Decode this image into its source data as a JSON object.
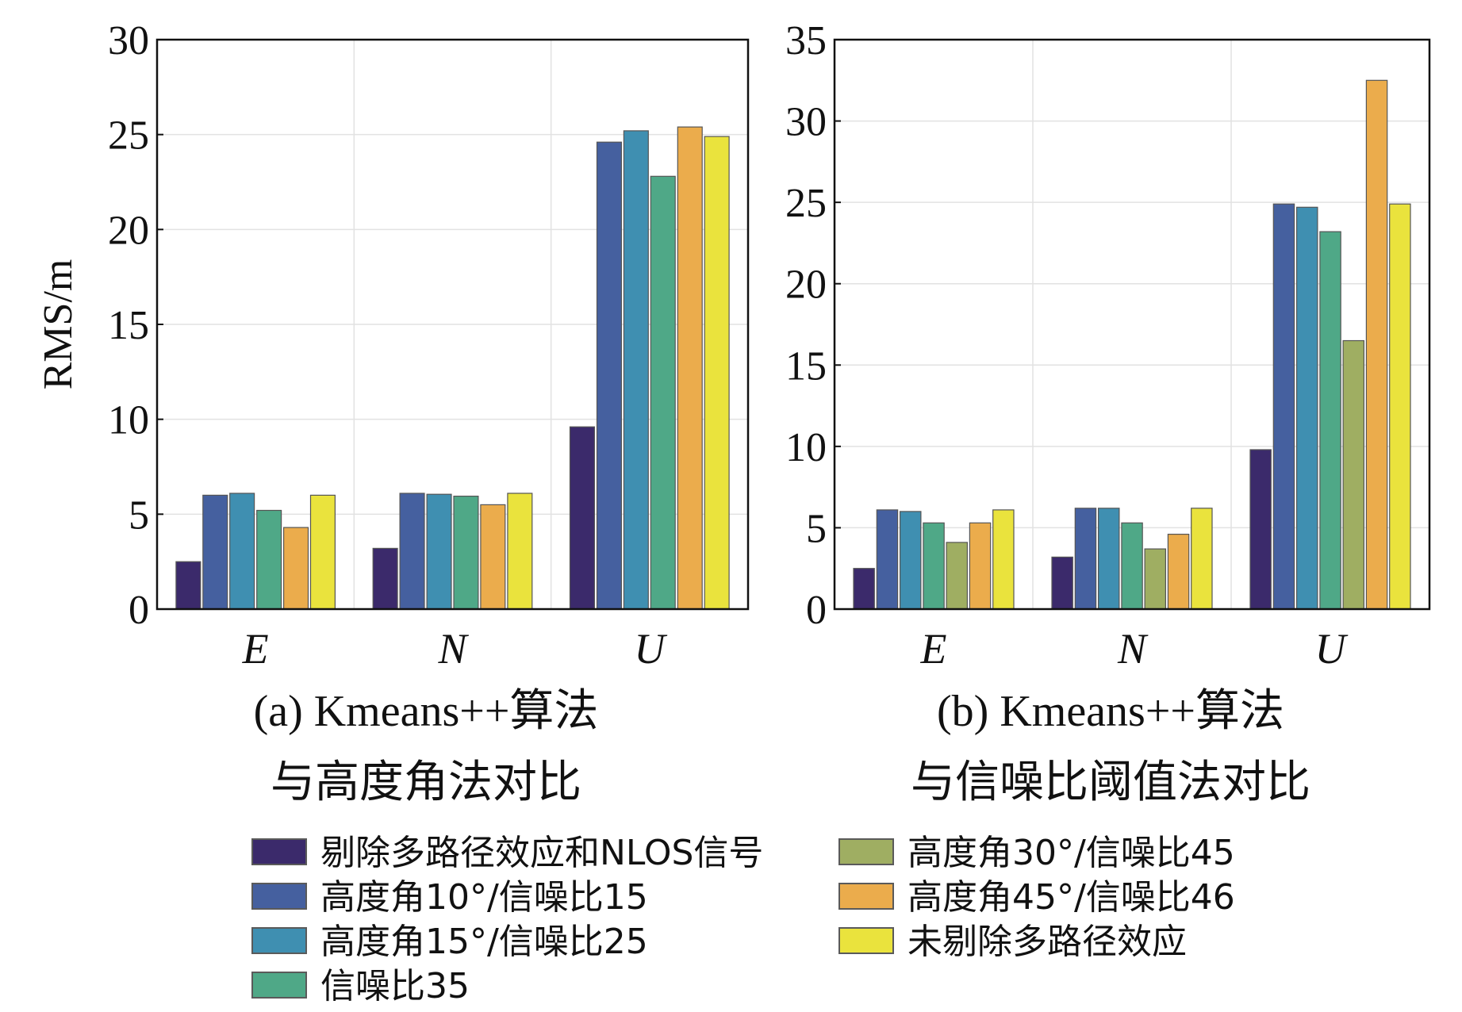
{
  "chart_data": [
    {
      "type": "bar",
      "panel": "a",
      "caption_line1": "(a) Kmeans++算法",
      "caption_line2": "与高度角法对比",
      "ylabel": "RMS/m",
      "xlabel": "",
      "categories": [
        "E",
        "N",
        "U"
      ],
      "ylim": [
        0,
        30
      ],
      "yticks": [
        0,
        5,
        10,
        15,
        20,
        25,
        30
      ],
      "grid": true,
      "series": [
        {
          "key": "s1",
          "values": [
            2.5,
            3.2,
            9.6
          ]
        },
        {
          "key": "s2",
          "values": [
            6.0,
            6.1,
            24.6
          ]
        },
        {
          "key": "s3",
          "values": [
            6.1,
            6.05,
            25.2
          ]
        },
        {
          "key": "s4",
          "values": [
            5.2,
            5.95,
            22.8
          ]
        },
        {
          "key": "s6",
          "values": [
            4.3,
            5.5,
            25.4
          ]
        },
        {
          "key": "s7",
          "values": [
            6.0,
            6.1,
            24.9
          ]
        }
      ]
    },
    {
      "type": "bar",
      "panel": "b",
      "caption_line1": "(b) Kmeans++算法",
      "caption_line2": "与信噪比阈值法对比",
      "ylabel": "",
      "xlabel": "",
      "categories": [
        "E",
        "N",
        "U"
      ],
      "ylim": [
        0,
        35
      ],
      "yticks": [
        0,
        5,
        10,
        15,
        20,
        25,
        30,
        35
      ],
      "grid": true,
      "series": [
        {
          "key": "s1",
          "values": [
            2.5,
            3.2,
            9.8
          ]
        },
        {
          "key": "s2",
          "values": [
            6.1,
            6.2,
            24.9
          ]
        },
        {
          "key": "s3",
          "values": [
            6.0,
            6.2,
            24.7
          ]
        },
        {
          "key": "s4",
          "values": [
            5.3,
            5.3,
            23.2
          ]
        },
        {
          "key": "s5",
          "values": [
            4.1,
            3.7,
            16.5
          ]
        },
        {
          "key": "s6",
          "values": [
            5.3,
            4.6,
            32.5
          ]
        },
        {
          "key": "s7",
          "values": [
            6.1,
            6.2,
            24.9
          ]
        }
      ]
    }
  ],
  "legend": [
    {
      "key": "s1",
      "label": "剔除多路径效应和NLOS信号",
      "color": "#3b2a6b"
    },
    {
      "key": "s2",
      "label": "高度角10°/信噪比15",
      "color": "#45609f"
    },
    {
      "key": "s3",
      "label": "高度角15°/信噪比25",
      "color": "#3f8fb1"
    },
    {
      "key": "s4",
      "label": "信噪比35",
      "color": "#4fa887"
    },
    {
      "key": "s5",
      "label": "高度角30°/信噪比45",
      "color": "#9fae62"
    },
    {
      "key": "s6",
      "label": "高度角45°/信噪比46",
      "color": "#ebac4c"
    },
    {
      "key": "s7",
      "label": "未剔除多路径效应",
      "color": "#eae33d"
    }
  ]
}
